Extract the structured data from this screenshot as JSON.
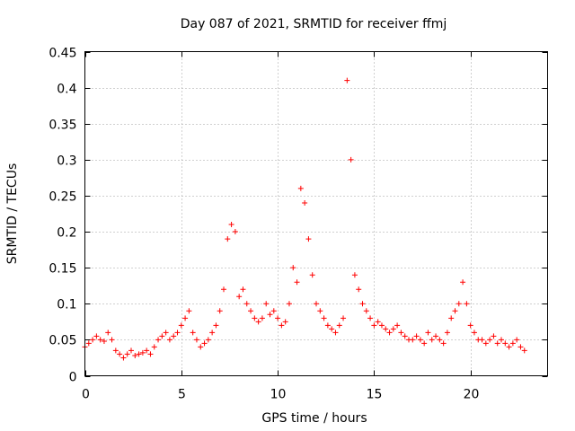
{
  "chart_data": {
    "type": "scatter",
    "title": "Day 087 of 2021, SRMTID for receiver ffmj",
    "xlabel": "GPS time / hours",
    "ylabel": "SRMTID / TECUs",
    "xlim": [
      0,
      24
    ],
    "ylim": [
      0,
      0.45
    ],
    "xticks": [
      0,
      5,
      10,
      15,
      20
    ],
    "xtick_labels": [
      "0",
      "5",
      "10",
      "15",
      "20"
    ],
    "yticks": [
      0,
      0.05,
      0.1,
      0.15,
      0.2,
      0.25,
      0.3,
      0.35,
      0.4,
      0.45
    ],
    "ytick_labels": [
      "0",
      "0.05",
      "0.1",
      "0.15",
      "0.2",
      "0.25",
      "0.3",
      "0.35",
      "0.4",
      "0.45"
    ],
    "grid": true,
    "marker": "+",
    "color": "#ff0000",
    "series": [
      {
        "name": "SRMTID",
        "x": [
          0.0,
          0.2,
          0.4,
          0.6,
          0.8,
          1.0,
          1.2,
          1.4,
          1.6,
          1.8,
          2.0,
          2.2,
          2.4,
          2.6,
          2.8,
          3.0,
          3.2,
          3.4,
          3.6,
          3.8,
          4.0,
          4.2,
          4.4,
          4.6,
          4.8,
          5.0,
          5.2,
          5.4,
          5.6,
          5.8,
          6.0,
          6.2,
          6.4,
          6.6,
          6.8,
          7.0,
          7.2,
          7.4,
          7.6,
          7.8,
          8.0,
          8.2,
          8.4,
          8.6,
          8.8,
          9.0,
          9.2,
          9.4,
          9.6,
          9.8,
          10.0,
          10.2,
          10.4,
          10.6,
          10.8,
          11.0,
          11.2,
          11.4,
          11.6,
          11.8,
          12.0,
          12.2,
          12.4,
          12.6,
          12.8,
          13.0,
          13.2,
          13.4,
          13.6,
          13.8,
          14.0,
          14.2,
          14.4,
          14.6,
          14.8,
          15.0,
          15.2,
          15.4,
          15.6,
          15.8,
          16.0,
          16.2,
          16.4,
          16.6,
          16.8,
          17.0,
          17.2,
          17.4,
          17.6,
          17.8,
          18.0,
          18.2,
          18.4,
          18.6,
          18.8,
          19.0,
          19.2,
          19.4,
          19.6,
          19.8,
          20.0,
          20.2,
          20.4,
          20.6,
          20.8,
          21.0,
          21.2,
          21.4,
          21.6,
          21.8,
          22.0,
          22.2,
          22.4,
          22.6,
          22.8
        ],
        "y": [
          0.04,
          0.045,
          0.05,
          0.055,
          0.05,
          0.048,
          0.06,
          0.05,
          0.035,
          0.03,
          0.025,
          0.03,
          0.035,
          0.028,
          0.03,
          0.032,
          0.035,
          0.03,
          0.04,
          0.05,
          0.055,
          0.06,
          0.05,
          0.055,
          0.06,
          0.07,
          0.08,
          0.09,
          0.06,
          0.05,
          0.04,
          0.045,
          0.05,
          0.06,
          0.07,
          0.09,
          0.12,
          0.19,
          0.21,
          0.2,
          0.11,
          0.12,
          0.1,
          0.09,
          0.08,
          0.075,
          0.08,
          0.1,
          0.085,
          0.09,
          0.08,
          0.07,
          0.075,
          0.1,
          0.15,
          0.13,
          0.26,
          0.24,
          0.19,
          0.14,
          0.1,
          0.09,
          0.08,
          0.07,
          0.065,
          0.06,
          0.07,
          0.08,
          0.41,
          0.3,
          0.14,
          0.12,
          0.1,
          0.09,
          0.08,
          0.07,
          0.075,
          0.07,
          0.065,
          0.06,
          0.065,
          0.07,
          0.06,
          0.055,
          0.05,
          0.05,
          0.055,
          0.05,
          0.045,
          0.06,
          0.05,
          0.055,
          0.05,
          0.045,
          0.06,
          0.08,
          0.09,
          0.1,
          0.13,
          0.1,
          0.07,
          0.06,
          0.05,
          0.05,
          0.045,
          0.05,
          0.055,
          0.045,
          0.05,
          0.045,
          0.04,
          0.045,
          0.05,
          0.04,
          0.035
        ]
      }
    ]
  }
}
